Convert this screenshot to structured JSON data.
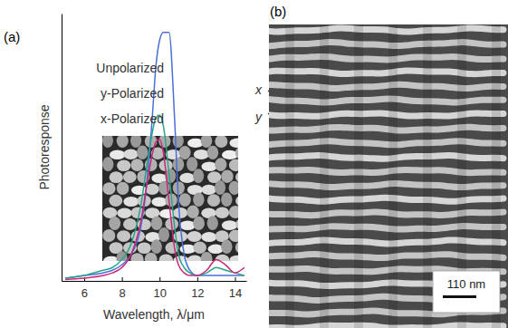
{
  "chart_data": {
    "type": "line",
    "x_label": "Wavelength, λ/μm",
    "y_label": "Photoresponse",
    "x": [
      5,
      6,
      7,
      7.5,
      8,
      8.5,
      9,
      9.3,
      9.6,
      9.8,
      10,
      10.2,
      10.5,
      10.8,
      11,
      11.3,
      11.6,
      12,
      12.5,
      13,
      13.5,
      14,
      14.5
    ],
    "series": [
      {
        "name": "Unpolarized",
        "color": "#4a6fd8",
        "values": [
          0.01,
          0.02,
          0.03,
          0.04,
          0.06,
          0.1,
          0.2,
          0.35,
          0.6,
          0.8,
          0.9,
          0.93,
          0.93,
          0.6,
          0.3,
          0.1,
          0.04,
          0.02,
          0.02,
          0.02,
          0.02,
          0.02,
          0.02
        ]
      },
      {
        "name": "y-Polarized",
        "color": "#2aa38a",
        "values": [
          0.01,
          0.02,
          0.04,
          0.05,
          0.08,
          0.14,
          0.28,
          0.42,
          0.55,
          0.61,
          0.62,
          0.58,
          0.4,
          0.2,
          0.1,
          0.05,
          0.03,
          0.02,
          0.03,
          0.05,
          0.04,
          0.03,
          0.02
        ]
      },
      {
        "name": "x-Polarized",
        "color": "#c8287a",
        "values": [
          0.005,
          0.01,
          0.02,
          0.03,
          0.05,
          0.1,
          0.22,
          0.35,
          0.47,
          0.52,
          0.53,
          0.48,
          0.3,
          0.12,
          0.06,
          0.03,
          0.02,
          0.02,
          0.04,
          0.08,
          0.06,
          0.03,
          0.05
        ]
      }
    ],
    "xlim": [
      4.8,
      14.6
    ],
    "xticks": [
      6,
      8,
      10,
      12,
      14
    ],
    "ylim": [
      0,
      1
    ],
    "yticks": [],
    "tick_labels": "x"
  },
  "figure": {
    "panel_a": "(a)",
    "panel_b": "(b)",
    "axes_key": [
      "x",
      "y"
    ],
    "scale_bar": "110 nm"
  }
}
